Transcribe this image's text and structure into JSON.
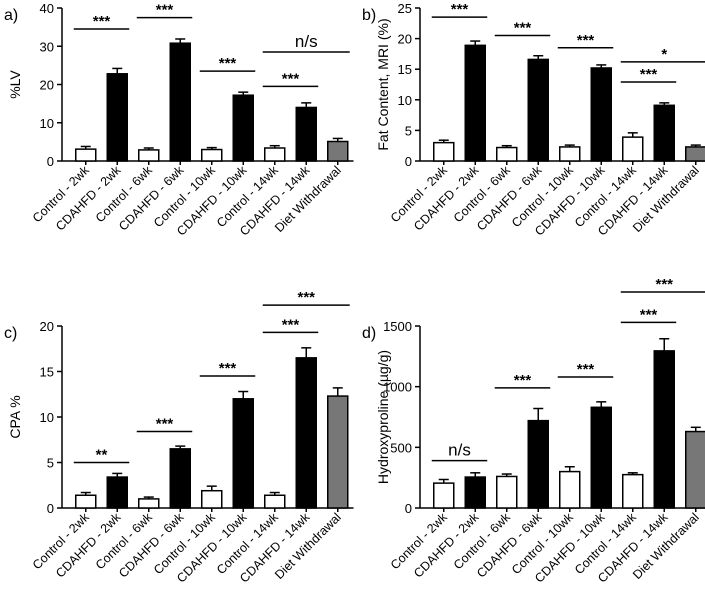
{
  "colors": {
    "control": "#ffffff",
    "cdahfd": "#000000",
    "withdrawal": "#777777",
    "axis": "#000000"
  },
  "chart_data": [
    {
      "id": "a",
      "type": "bar",
      "panel_label": "a)",
      "ylabel": "%LV",
      "ylim": [
        0,
        40
      ],
      "yticks": [
        0,
        10,
        20,
        30,
        40
      ],
      "categories": [
        "Control - 2wk",
        "CDAHFD - 2wk",
        "Control - 6wk",
        "CDAHFD - 6wk",
        "Control - 10wk",
        "CDAHFD - 10wk",
        "Control - 14wk",
        "CDAHFD - 14wk",
        "Diet Withdrawal"
      ],
      "values": [
        3.1,
        22.8,
        2.9,
        30.8,
        3.0,
        17.2,
        3.4,
        14.0,
        5.1
      ],
      "errors": [
        0.7,
        1.4,
        0.5,
        1.1,
        0.5,
        0.8,
        0.6,
        1.2,
        0.8
      ],
      "fill": [
        "control",
        "cdahfd",
        "control",
        "cdahfd",
        "control",
        "cdahfd",
        "control",
        "cdahfd",
        "withdrawal"
      ],
      "annotations": [
        {
          "text": "***",
          "from": 0,
          "to": 1,
          "y": 34.5
        },
        {
          "text": "***",
          "from": 2,
          "to": 3,
          "y": 37.5
        },
        {
          "text": "***",
          "from": 4,
          "to": 5,
          "y": 23.5
        },
        {
          "text": "***",
          "from": 6,
          "to": 7,
          "y": 19.5
        },
        {
          "text": "n/s",
          "from": 6,
          "to": 8,
          "y": 28.5
        }
      ]
    },
    {
      "id": "b",
      "type": "bar",
      "panel_label": "b)",
      "ylabel": "Fat Content, MRI (%)",
      "ylim": [
        0,
        25
      ],
      "yticks": [
        0,
        5,
        10,
        15,
        20,
        25
      ],
      "categories": [
        "Control - 2wk",
        "CDAHFD - 2wk",
        "Control - 6wk",
        "CDAHFD - 6wk",
        "Control - 10wk",
        "CDAHFD - 10wk",
        "Control - 14wk",
        "CDAHFD - 14wk",
        "Diet Withdrawal"
      ],
      "values": [
        3.0,
        18.9,
        2.2,
        16.6,
        2.3,
        15.2,
        3.9,
        9.1,
        2.3
      ],
      "errors": [
        0.4,
        0.7,
        0.3,
        0.6,
        0.3,
        0.5,
        0.7,
        0.4,
        0.3
      ],
      "fill": [
        "control",
        "cdahfd",
        "control",
        "cdahfd",
        "control",
        "cdahfd",
        "control",
        "cdahfd",
        "withdrawal"
      ],
      "annotations": [
        {
          "text": "***",
          "from": 0,
          "to": 1,
          "y": 23.5
        },
        {
          "text": "***",
          "from": 2,
          "to": 3,
          "y": 20.5
        },
        {
          "text": "***",
          "from": 4,
          "to": 5,
          "y": 18.5
        },
        {
          "text": "***",
          "from": 6,
          "to": 7,
          "y": 12.9
        },
        {
          "text": "*",
          "from": 6,
          "to": 8,
          "y": 16.2
        }
      ]
    },
    {
      "id": "c",
      "type": "bar",
      "panel_label": "c)",
      "ylabel": "CPA %",
      "ylim": [
        0,
        20
      ],
      "yticks": [
        0,
        5,
        10,
        15,
        20
      ],
      "categories": [
        "Control - 2wk",
        "CDAHFD - 2wk",
        "Control - 6wk",
        "CDAHFD - 6wk",
        "Control - 10wk",
        "CDAHFD - 10wk",
        "Control - 14wk",
        "CDAHFD - 14wk",
        "Diet Withdrawal"
      ],
      "values": [
        1.4,
        3.4,
        1.0,
        6.5,
        1.9,
        12.0,
        1.4,
        16.5,
        12.3
      ],
      "errors": [
        0.3,
        0.4,
        0.2,
        0.3,
        0.5,
        0.8,
        0.3,
        1.1,
        0.9
      ],
      "fill": [
        "control",
        "cdahfd",
        "control",
        "cdahfd",
        "control",
        "cdahfd",
        "control",
        "cdahfd",
        "withdrawal"
      ],
      "annotations": [
        {
          "text": "**",
          "from": 0,
          "to": 1,
          "y": 5.0
        },
        {
          "text": "***",
          "from": 2,
          "to": 3,
          "y": 8.4
        },
        {
          "text": "***",
          "from": 4,
          "to": 5,
          "y": 14.5
        },
        {
          "text": "***",
          "from": 6,
          "to": 7,
          "y": 19.3
        },
        {
          "text": "***",
          "from": 6,
          "to": 8,
          "y": 22.3
        }
      ]
    },
    {
      "id": "d",
      "type": "bar",
      "panel_label": "d)",
      "ylabel": "Hydroxyproline (µg/g)",
      "ylim": [
        0,
        1500
      ],
      "yticks": [
        0,
        500,
        1000,
        1500
      ],
      "categories": [
        "Control - 2wk",
        "CDAHFD - 2wk",
        "Control - 6wk",
        "CDAHFD - 6wk",
        "Control - 10wk",
        "CDAHFD - 10wk",
        "Control - 14wk",
        "CDAHFD - 14wk",
        "Diet Withdrawal"
      ],
      "values": [
        205,
        255,
        260,
        720,
        300,
        830,
        275,
        1295,
        630
      ],
      "errors": [
        30,
        35,
        20,
        100,
        40,
        45,
        15,
        100,
        35
      ],
      "fill": [
        "control",
        "cdahfd",
        "control",
        "cdahfd",
        "control",
        "cdahfd",
        "control",
        "cdahfd",
        "withdrawal"
      ],
      "annotations": [
        {
          "text": "n/s",
          "from": 0,
          "to": 1,
          "y": 390
        },
        {
          "text": "***",
          "from": 2,
          "to": 3,
          "y": 990
        },
        {
          "text": "***",
          "from": 4,
          "to": 5,
          "y": 1080
        },
        {
          "text": "***",
          "from": 6,
          "to": 7,
          "y": 1530
        },
        {
          "text": "***",
          "from": 6,
          "to": 8,
          "y": 1780
        }
      ]
    }
  ]
}
